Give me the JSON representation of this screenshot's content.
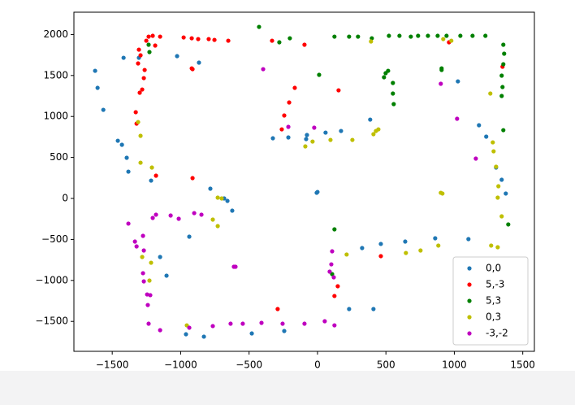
{
  "chart_data": {
    "type": "scatter",
    "xlim": [
      -1780,
      1585
    ],
    "ylim": [
      -1865,
      2272
    ],
    "xticks": [
      {
        "value": -1500,
        "label": "−1500"
      },
      {
        "value": -1000,
        "label": "−1000"
      },
      {
        "value": -500,
        "label": "−500"
      },
      0,
      500,
      1000,
      1500
    ],
    "yticks": [
      {
        "value": -1500,
        "label": "−1500"
      },
      {
        "value": -1000,
        "label": "−1000"
      },
      {
        "value": -500,
        "label": "−500"
      },
      0,
      500,
      1000,
      1500,
      2000
    ],
    "legend": "lower right",
    "series": [
      {
        "name": "0,0",
        "color": "#1f77b4",
        "x": [
          -1625,
          -1607,
          -1565,
          -1459,
          -1429,
          -1394,
          -1382,
          -1417,
          -1305,
          -1216,
          -1026,
          -866,
          -783,
          -682,
          -658,
          -623,
          -937,
          -1103,
          -1150,
          -961,
          -830,
          -480,
          -243,
          -326,
          -213,
          -83,
          -77,
          59,
          172,
          -6,
          0,
          385,
          326,
          463,
          641,
          860,
          231,
          409,
          1103,
          1026,
          1180,
          1233,
          1305,
          1346,
          1376
        ],
        "values": [
          1557,
          1349,
          1081,
          704,
          655,
          496,
          327,
          1716,
          1716,
          218,
          1736,
          1657,
          119,
          0,
          -30,
          -149,
          -466,
          -942,
          -714,
          -1657,
          -1686,
          -1647,
          -1617,
          734,
          744,
          724,
          774,
          803,
          823,
          69,
          79,
          962,
          -605,
          -555,
          -526,
          -486,
          -1349,
          -1349,
          -496,
          1428,
          893,
          754,
          377,
          228,
          60
        ]
      },
      {
        "name": "5,-3",
        "color": "#ff0000",
        "x": [
          -1305,
          -1293,
          -1311,
          -1263,
          -1269,
          -1281,
          -1299,
          -1251,
          -1234,
          -1204,
          -1150,
          -978,
          -919,
          -872,
          -795,
          -753,
          -652,
          -332,
          -95,
          -166,
          -207,
          -243,
          -261,
          -1328,
          -1322,
          -1180,
          -913,
          -913,
          124,
          148,
          -291,
          463,
          154,
          961,
          1352,
          -919,
          -1186
        ],
        "values": [
          1815,
          1746,
          1647,
          1567,
          1468,
          1329,
          1290,
          1924,
          1974,
          1984,
          1974,
          1964,
          1954,
          1944,
          1944,
          1934,
          1924,
          1924,
          1875,
          1349,
          1171,
          1012,
          843,
          1052,
          913,
          278,
          248,
          1577,
          -1190,
          -1071,
          -1349,
          -704,
          1319,
          1905,
          1607,
          1587,
          1865
        ]
      },
      {
        "name": "5,3",
        "color": "#008000",
        "x": [
          -427,
          -279,
          -202,
          12,
          124,
          231,
          296,
          397,
          522,
          599,
          682,
          735,
          807,
          878,
          943,
          1044,
          1133,
          1227,
          1358,
          1364,
          1358,
          1346,
          1352,
          1346,
          1358,
          1394,
          498,
          486,
          551,
          551,
          557,
          516,
          124,
          107,
          -1234,
          -1228,
          907,
          907
        ],
        "values": [
          2093,
          1905,
          1954,
          1508,
          1974,
          1974,
          1974,
          1954,
          1984,
          1984,
          1974,
          1984,
          1984,
          1984,
          1984,
          1984,
          1984,
          1984,
          1875,
          1766,
          1637,
          1498,
          1359,
          1250,
          833,
          -317,
          1528,
          1478,
          1409,
          1280,
          1151,
          1557,
          -377,
          -923,
          1875,
          1786,
          1587,
          1567
        ]
      },
      {
        "name": "0,3",
        "color": "#bfbf00",
        "x": [
          -1311,
          -1293,
          -1293,
          -1210,
          -729,
          -700,
          -765,
          -729,
          -1216,
          -1281,
          -1228,
          -955,
          -89,
          -36,
          95,
          255,
          409,
          445,
          427,
          213,
          646,
          753,
          883,
          901,
          913,
          1263,
          1281,
          1287,
          1305,
          1322,
          1317,
          1346,
          1269,
          1317,
          391,
          919,
          978
        ],
        "values": [
          932,
          764,
          436,
          377,
          10,
          0,
          -258,
          -337,
          -784,
          -714,
          -1002,
          -1548,
          635,
          694,
          714,
          714,
          784,
          843,
          823,
          -684,
          -665,
          -635,
          -575,
          69,
          60,
          1280,
          684,
          575,
          387,
          149,
          10,
          -218,
          -575,
          -595,
          1915,
          1944,
          1924
        ]
      },
      {
        "name": "-3,-2",
        "color": "#bf00bf",
        "x": [
          -1382,
          -1334,
          -1322,
          -1275,
          -1269,
          -1275,
          -1269,
          -1245,
          -1240,
          -1222,
          -1204,
          -1180,
          -1073,
          -1014,
          -901,
          -848,
          -599,
          -611,
          -1234,
          -1150,
          -937,
          -765,
          -635,
          -546,
          -409,
          -255,
          -95,
          53,
          124,
          101,
          89,
          119,
          107,
          -213,
          -24,
          -397,
          901,
          1020,
          1157
        ],
        "values": [
          -307,
          -526,
          -585,
          -456,
          -635,
          -912,
          -1012,
          -1171,
          -1300,
          -1180,
          -238,
          -198,
          -208,
          -248,
          -179,
          -198,
          -833,
          -833,
          -1528,
          -1607,
          -1577,
          -1557,
          -1528,
          -1528,
          -1518,
          -1528,
          -1528,
          -1498,
          -1548,
          -804,
          -893,
          -962,
          -645,
          873,
          863,
          1577,
          1399,
          972,
          486
        ]
      }
    ]
  }
}
